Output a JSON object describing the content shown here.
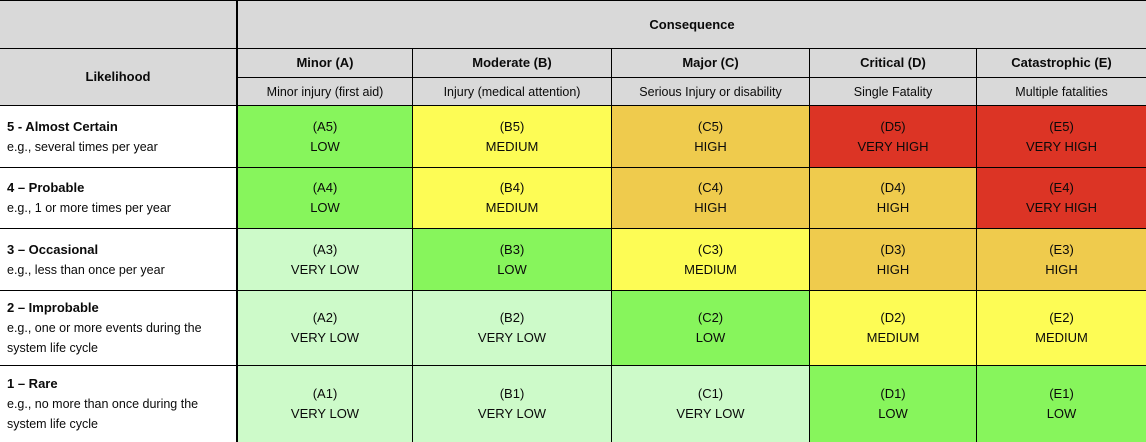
{
  "colors": {
    "header_bg": "#D9D9D9",
    "label_bg": "#FFFFFF",
    "border": "#000000",
    "text": "#0A0A0A"
  },
  "chart_data": {
    "type": "heatmap",
    "xlabel": "Consequence",
    "ylabel": "Likelihood",
    "x_categories": [
      "Minor (A)",
      "Moderate (B)",
      "Major (C)",
      "Critical (D)",
      "Catastrophic (E)"
    ],
    "x_descriptions": [
      "Minor injury (first aid)",
      "Injury (medical attention)",
      "Serious Injury or disability",
      "Single Fatality",
      "Multiple fatalities"
    ],
    "y_categories": [
      "5 - Almost Certain",
      "4 – Probable",
      "3 – Occasional",
      "2 – Improbable",
      "1 – Rare"
    ],
    "y_descriptions": [
      "e.g., several times per year",
      "e.g., 1 or more times per year",
      "e.g., less than once per year",
      "e.g., one or more events during the system life cycle",
      "e.g., no more than once during the system life cycle"
    ],
    "cell_codes": [
      [
        "(A5)",
        "(B5)",
        "(C5)",
        "(D5)",
        "(E5)"
      ],
      [
        "(A4)",
        "(B4)",
        "(C4)",
        "(D4)",
        "(E4)"
      ],
      [
        "(A3)",
        "(B3)",
        "(C3)",
        "(D3)",
        "(E3)"
      ],
      [
        "(A2)",
        "(B2)",
        "(C2)",
        "(D2)",
        "(E2)"
      ],
      [
        "(A1)",
        "(B1)",
        "(C1)",
        "(D1)",
        "(E1)"
      ]
    ],
    "cell_levels": [
      [
        "LOW",
        "MEDIUM",
        "HIGH",
        "VERY HIGH",
        "VERY HIGH"
      ],
      [
        "LOW",
        "MEDIUM",
        "HIGH",
        "HIGH",
        "VERY HIGH"
      ],
      [
        "VERY LOW",
        "LOW",
        "MEDIUM",
        "HIGH",
        "HIGH"
      ],
      [
        "VERY LOW",
        "VERY LOW",
        "LOW",
        "MEDIUM",
        "MEDIUM"
      ],
      [
        "VERY LOW",
        "VERY LOW",
        "VERY LOW",
        "LOW",
        "LOW"
      ]
    ],
    "level_colors": {
      "VERY LOW": "#CDFAC9",
      "LOW": "#87F55C",
      "MEDIUM": "#FDFC55",
      "HIGH": "#EFCB4D",
      "VERY HIGH": "#DC3425"
    }
  }
}
